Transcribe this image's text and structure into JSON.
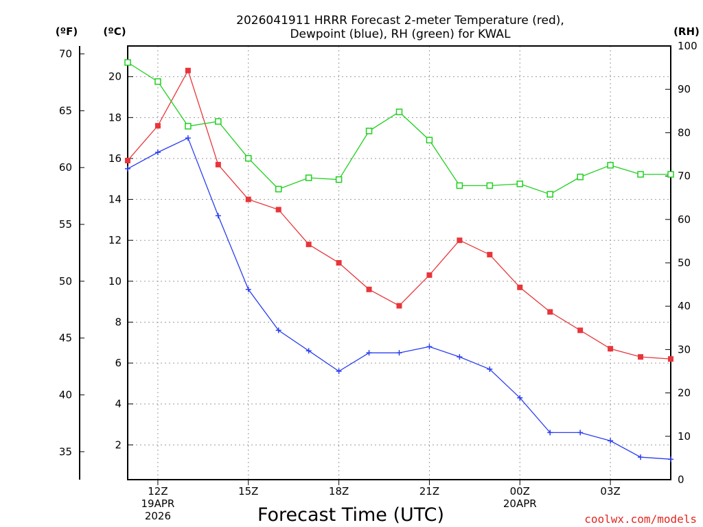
{
  "chart_data": {
    "type": "line",
    "title_line1": "2026041911 HRRR Forecast 2-meter Temperature (red),",
    "title_line2": "Dewpoint (blue), RH (green) for KWAL",
    "xlabel": "Forecast Time (UTC)",
    "credit": "coolwx.com/models",
    "units": {
      "fahrenheit": "(ºF)",
      "celsius": "(ºC)",
      "rh": "(RH)"
    },
    "x_hours": [
      11,
      12,
      13,
      14,
      15,
      16,
      17,
      18,
      19,
      20,
      21,
      22,
      23,
      24,
      25,
      26,
      27,
      28,
      29
    ],
    "x_ticks": [
      {
        "hour": 12,
        "lines": [
          "12Z",
          "19APR",
          "2026"
        ]
      },
      {
        "hour": 15,
        "lines": [
          "15Z"
        ]
      },
      {
        "hour": 18,
        "lines": [
          "18Z"
        ]
      },
      {
        "hour": 21,
        "lines": [
          "21Z"
        ]
      },
      {
        "hour": 24,
        "lines": [
          "00Z",
          "20APR"
        ]
      },
      {
        "hour": 27,
        "lines": [
          "03Z"
        ]
      }
    ],
    "y_celsius": {
      "range": [
        0.3,
        21.5
      ],
      "ticks": [
        "2",
        "4",
        "6",
        "8",
        "10",
        "12",
        "14",
        "16",
        "18",
        "20"
      ]
    },
    "y_fahrenheit": {
      "ticks": [
        "35",
        "40",
        "45",
        "50",
        "55",
        "60",
        "65",
        "70"
      ]
    },
    "y_rh": {
      "range": [
        0,
        100
      ],
      "ticks": [
        "0",
        "10",
        "20",
        "30",
        "40",
        "50",
        "60",
        "70",
        "80",
        "90",
        "100"
      ]
    },
    "series": [
      {
        "name": "Temperature",
        "color": "#e8353a",
        "axis": "celsius",
        "marker": "filled-square",
        "values": [
          15.9,
          17.6,
          20.3,
          15.7,
          14.0,
          13.5,
          11.8,
          10.9,
          9.6,
          8.8,
          10.3,
          12.0,
          11.3,
          9.7,
          8.5,
          7.6,
          6.7,
          6.3,
          6.2
        ]
      },
      {
        "name": "Dewpoint",
        "color": "#2a3ef0",
        "axis": "celsius",
        "marker": "plus",
        "values": [
          15.5,
          16.3,
          17.0,
          13.2,
          9.6,
          7.6,
          6.6,
          5.6,
          6.5,
          6.5,
          6.8,
          6.3,
          5.7,
          4.3,
          2.6,
          2.6,
          2.2,
          1.4,
          1.3
        ]
      },
      {
        "name": "RH",
        "color": "#1fd01f",
        "axis": "rh",
        "marker": "open-square",
        "values": [
          96.2,
          91.8,
          81.5,
          82.6,
          74.1,
          67.0,
          69.6,
          69.2,
          80.4,
          84.8,
          78.3,
          67.8,
          67.8,
          68.2,
          65.8,
          69.8,
          72.5,
          70.4,
          70.4
        ]
      }
    ]
  }
}
